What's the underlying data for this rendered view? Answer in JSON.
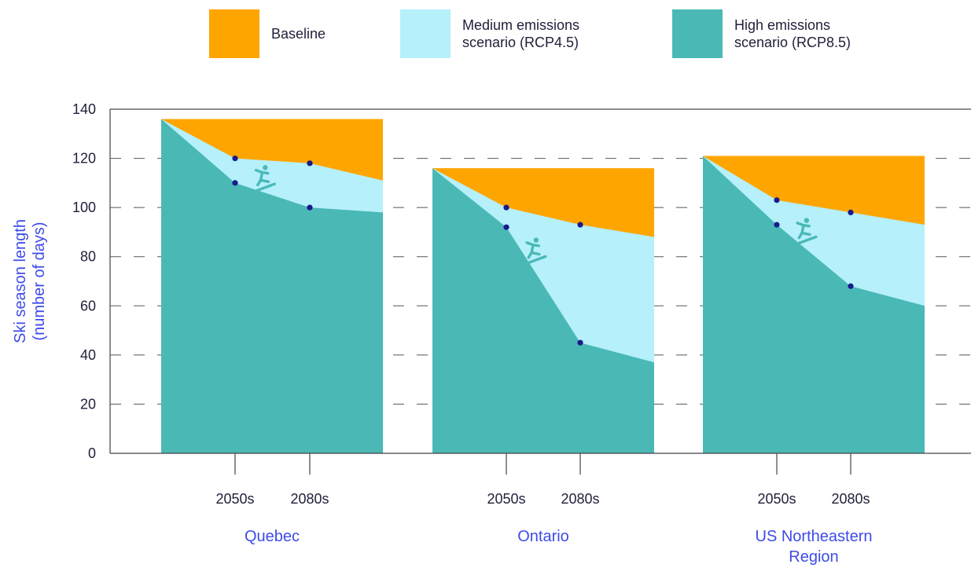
{
  "legend": [
    {
      "label": "Baseline",
      "color": "#FFA500"
    },
    {
      "label": "Medium emissions\nscenario (RCP4.5)",
      "color": "#B5F0FB"
    },
    {
      "label": "High emissions\nscenario (RCP8.5)",
      "color": "#4AB9B5"
    }
  ],
  "chart_data": {
    "type": "area",
    "title": "",
    "ylabel": "Ski season length\n(number of days)",
    "ylim": [
      0,
      140
    ],
    "yticks": [
      0,
      20,
      40,
      60,
      80,
      100,
      120,
      140
    ],
    "grid": "dashed horizontal",
    "period_labels": [
      "2050s",
      "2080s"
    ],
    "series_names": [
      "Baseline",
      "Medium emissions scenario (RCP4.5)",
      "High emissions scenario (RCP8.5)"
    ],
    "colors": {
      "baseline": "#FFA500",
      "rcp45": "#B5F0FB",
      "rcp85": "#4AB9B5",
      "marker": "#1a1a8c",
      "icon": "#4AB9B5"
    },
    "regions": [
      {
        "name": "Quebec",
        "baseline": 136,
        "rcp45": {
          "start": 136,
          "2050s": 120,
          "2080s": 118,
          "end": 111
        },
        "rcp85": {
          "start": 136,
          "2050s": 110,
          "2080s": 100,
          "end": 98
        }
      },
      {
        "name": "Ontario",
        "baseline": 116,
        "rcp45": {
          "start": 116,
          "2050s": 100,
          "2080s": 93,
          "end": 88
        },
        "rcp85": {
          "start": 116,
          "2050s": 92,
          "2080s": 45,
          "end": 37
        }
      },
      {
        "name": "US Northeastern\nRegion",
        "baseline": 121,
        "rcp45": {
          "start": 121,
          "2050s": 103,
          "2080s": 98,
          "end": 93
        },
        "rcp85": {
          "start": 121,
          "2050s": 93,
          "2080s": 68,
          "end": 60
        }
      }
    ]
  }
}
